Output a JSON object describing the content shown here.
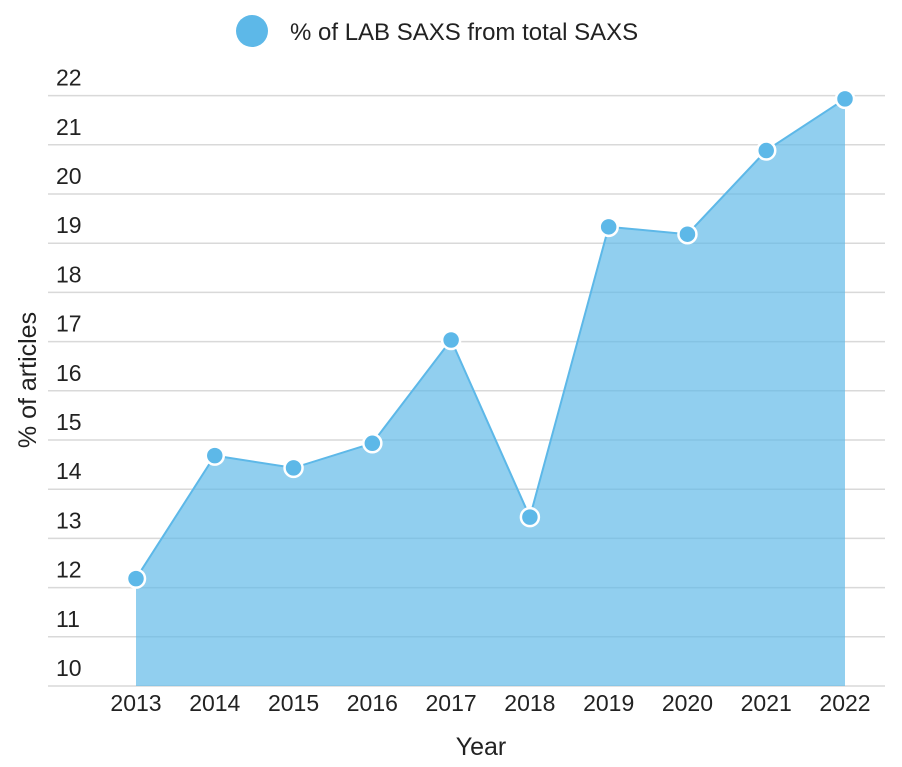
{
  "chart_data": {
    "type": "area",
    "x": [
      "2013",
      "2014",
      "2015",
      "2016",
      "2017",
      "2018",
      "2019",
      "2020",
      "2021",
      "2022"
    ],
    "series": [
      {
        "name": "% of LAB SAXS from total SAXS",
        "values": [
          12.0,
          14.5,
          14.25,
          14.75,
          16.85,
          13.25,
          19.15,
          19.0,
          20.7,
          21.75
        ],
        "color": "#5db8e8"
      }
    ],
    "xlabel": "Year",
    "ylabel": "% of articles",
    "yticks": [
      10,
      11,
      12,
      13,
      14,
      15,
      16,
      17,
      18,
      19,
      20,
      21,
      22
    ],
    "ylim": [
      9.6,
      22.3
    ],
    "grid": true,
    "legend": "top-center"
  }
}
